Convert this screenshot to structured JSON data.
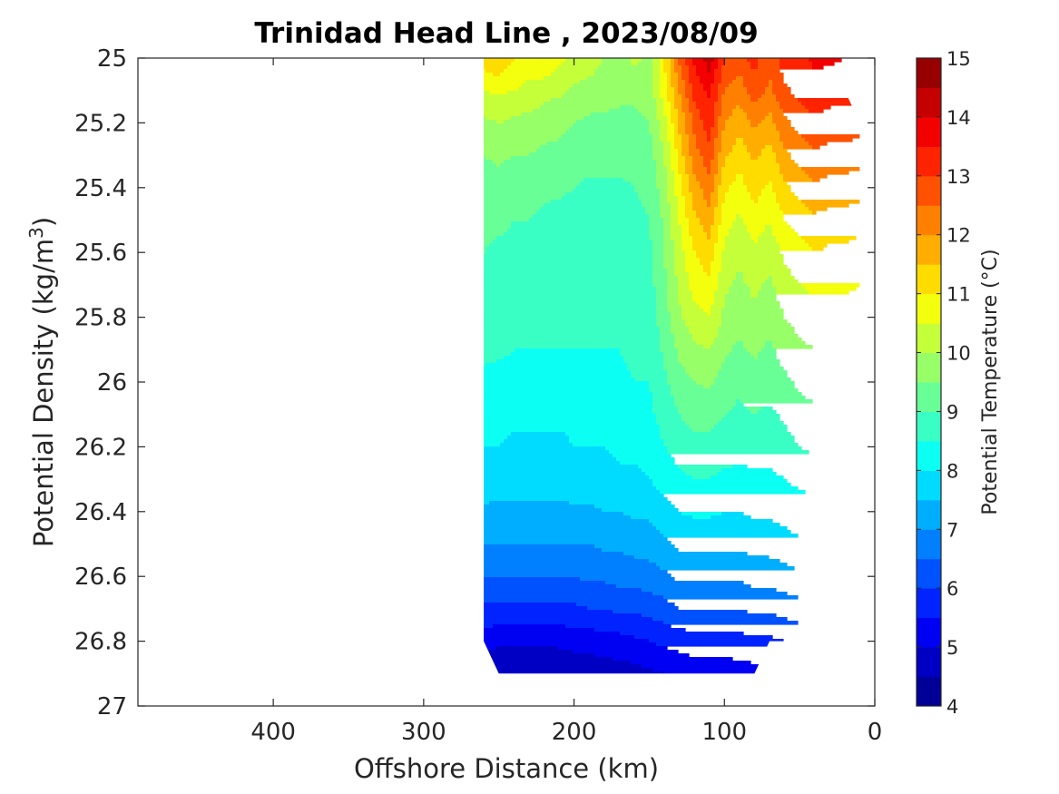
{
  "chart_data": {
    "type": "contour",
    "title": "Trinidad Head Line , 2023/08/09",
    "xlabel": "Offshore Distance (km)",
    "ylabel": "Potential Density (kg/m",
    "ylabel_sup": "3",
    "ylabel_suffix": ")",
    "xlim": [
      490,
      0
    ],
    "x_reversed": true,
    "ylim": [
      25,
      27
    ],
    "y_reversed": true,
    "x_ticks": [
      400,
      300,
      200,
      100,
      0
    ],
    "y_ticks": [
      25,
      25.2,
      25.4,
      25.6,
      25.8,
      26,
      26.2,
      26.4,
      26.6,
      26.8,
      27
    ],
    "x_tick_labels": [
      "400",
      "300",
      "200",
      "100",
      "0"
    ],
    "y_tick_labels": [
      "25",
      "25.2",
      "25.4",
      "25.6",
      "25.8",
      "26",
      "26.2",
      "26.4",
      "26.6",
      "26.8",
      "27"
    ],
    "colorbar": {
      "label": "Potential Temperature (°C)",
      "min": 4,
      "max": 15,
      "levels": [
        4,
        4.5,
        5,
        5.5,
        6,
        6.5,
        7,
        7.5,
        8,
        8.5,
        9,
        9.5,
        10,
        10.5,
        11,
        11.5,
        12,
        12.5,
        13,
        13.5,
        14,
        14.5,
        15
      ],
      "tick_values": [
        4,
        5,
        6,
        7,
        8,
        9,
        10,
        11,
        12,
        13,
        14,
        15
      ],
      "tick_labels": [
        "4",
        "5",
        "6",
        "7",
        "8",
        "9",
        "10",
        "11",
        "12",
        "13",
        "14",
        "15"
      ],
      "colormap": "jet"
    },
    "x": [
      260,
      250,
      240,
      230,
      220,
      210,
      200,
      190,
      180,
      170,
      160,
      150,
      140,
      130,
      120,
      110,
      100,
      90,
      80,
      70,
      60,
      50,
      40,
      30,
      20,
      10
    ],
    "y": [
      25.0,
      25.1,
      25.2,
      25.3,
      25.4,
      25.5,
      25.6,
      25.7,
      25.8,
      25.9,
      26.0,
      26.1,
      26.2,
      26.3,
      26.4,
      26.5,
      26.6,
      26.7,
      26.8,
      26.9
    ],
    "coverage": [
      {
        "x": 260,
        "y_top": 25.0,
        "y_bottom": 26.8
      },
      {
        "x": 250,
        "y_top": 25.0,
        "y_bottom": 26.9
      },
      {
        "x": 80,
        "y_top": 25.0,
        "y_bottom": 26.9
      },
      {
        "x": 70,
        "y_top": 25.0,
        "y_bottom": 26.8
      },
      {
        "x": 30,
        "y_top": 25.0,
        "y_bottom": 26.8
      },
      {
        "x": 30,
        "y_top": 25.0,
        "y_bottom": 26.6
      },
      {
        "x": 20,
        "y_top": 25.0,
        "y_bottom": 26.5
      },
      {
        "x": 20,
        "y_top": 25.0,
        "y_bottom": 26.2
      },
      {
        "x": 10,
        "y_top": 25.2,
        "y_bottom": 26.1
      },
      {
        "x": 20,
        "y_top": 25.1,
        "y_bottom": 26.0
      },
      {
        "x": 20,
        "y_top": 25.0,
        "y_bottom": 25.1
      }
    ],
    "values": [
      [
        11.3,
        11.5,
        11.0,
        10.7,
        11.0,
        10.6,
        10.4,
        10.3,
        10.0,
        9.6,
        10.2,
        9.8,
        11.0,
        12.6,
        13.6,
        14.3,
        13.0,
        12.8,
        13.2,
        12.6,
        13.3,
        13.4,
        13.6,
        13.6,
        13.5,
        13.3
      ],
      [
        10.5,
        10.6,
        10.5,
        10.4,
        10.2,
        10.1,
        9.9,
        9.8,
        9.7,
        9.6,
        9.6,
        9.7,
        10.8,
        12.0,
        13.2,
        13.6,
        12.5,
        12.2,
        12.8,
        12.4,
        12.9,
        13.2,
        13.3,
        13.2,
        13.2,
        13.1
      ],
      [
        9.9,
        10.0,
        9.9,
        9.8,
        9.7,
        9.6,
        9.5,
        9.4,
        9.4,
        9.4,
        9.4,
        9.5,
        10.3,
        11.6,
        12.6,
        13.3,
        12.0,
        11.7,
        12.1,
        11.8,
        12.4,
        12.7,
        12.9,
        12.8,
        12.8,
        12.7
      ],
      [
        9.5,
        9.6,
        9.5,
        9.5,
        9.4,
        9.4,
        9.3,
        9.2,
        9.2,
        9.2,
        9.2,
        9.3,
        10.0,
        11.2,
        12.3,
        12.8,
        11.6,
        11.2,
        11.6,
        11.3,
        11.9,
        12.2,
        12.4,
        12.3,
        12.3,
        12.2
      ],
      [
        9.3,
        9.3,
        9.2,
        9.2,
        9.1,
        9.1,
        9.0,
        8.9,
        8.9,
        8.9,
        9.0,
        9.1,
        9.8,
        10.8,
        11.8,
        12.3,
        11.1,
        10.8,
        11.2,
        10.9,
        11.4,
        11.7,
        11.9,
        11.8,
        11.8,
        11.7
      ],
      [
        9.1,
        9.1,
        9.0,
        9.0,
        8.9,
        8.8,
        8.8,
        8.8,
        8.8,
        8.8,
        8.9,
        9.0,
        9.6,
        10.5,
        11.4,
        11.8,
        10.7,
        10.4,
        10.8,
        10.5,
        11.0,
        11.2,
        11.4,
        11.3,
        11.3,
        11.2
      ],
      [
        9.0,
        8.9,
        8.9,
        8.8,
        8.8,
        8.8,
        8.8,
        8.7,
        8.7,
        8.7,
        8.8,
        8.9,
        9.5,
        10.3,
        11.0,
        11.3,
        10.4,
        10.1,
        10.4,
        10.2,
        10.6,
        10.8,
        11.0,
        10.9,
        10.9,
        10.8
      ],
      [
        8.9,
        8.9,
        8.8,
        8.8,
        8.7,
        8.7,
        8.7,
        8.7,
        8.7,
        8.7,
        8.7,
        8.8,
        9.4,
        10.1,
        10.7,
        10.9,
        10.1,
        9.9,
        10.1,
        9.9,
        10.3,
        10.5,
        10.6,
        10.6,
        10.6,
        10.5
      ],
      [
        8.8,
        8.8,
        8.7,
        8.7,
        8.7,
        8.7,
        8.6,
        8.6,
        8.6,
        8.6,
        8.7,
        8.7,
        9.3,
        9.9,
        10.3,
        10.5,
        9.9,
        9.7,
        9.9,
        9.7,
        10.0,
        10.2,
        10.3,
        10.3,
        10.3,
        10.2
      ],
      [
        8.6,
        8.6,
        8.5,
        8.5,
        8.5,
        8.5,
        8.5,
        8.5,
        8.5,
        8.5,
        8.6,
        8.6,
        9.1,
        9.6,
        9.9,
        10.0,
        9.6,
        9.4,
        9.6,
        9.4,
        9.7,
        9.9,
        10.0,
        10.0,
        10.0,
        10.0
      ],
      [
        8.4,
        8.3,
        8.3,
        8.3,
        8.3,
        8.3,
        8.3,
        8.3,
        8.4,
        8.4,
        8.5,
        8.5,
        8.9,
        9.3,
        9.5,
        9.6,
        9.3,
        9.1,
        9.3,
        9.2,
        9.4,
        9.6,
        9.7,
        9.7,
        9.7,
        9.7
      ],
      [
        8.2,
        8.2,
        8.1,
        8.1,
        8.1,
        8.1,
        8.1,
        8.2,
        8.2,
        8.3,
        8.3,
        8.4,
        8.7,
        9.0,
        9.2,
        9.2,
        9.0,
        8.9,
        9.0,
        8.9,
        9.1,
        9.3,
        9.4,
        9.4,
        9.4,
        9.4
      ],
      [
        8.0,
        8.0,
        7.9,
        7.9,
        7.9,
        7.9,
        8.0,
        8.0,
        8.0,
        8.1,
        8.1,
        8.2,
        8.5,
        8.7,
        8.8,
        8.8,
        8.7,
        8.6,
        8.7,
        8.7,
        8.8,
        9.0,
        9.1,
        9.1,
        9.1,
        9.1
      ],
      [
        7.8,
        7.7,
        7.7,
        7.7,
        7.7,
        7.7,
        7.8,
        7.8,
        7.8,
        7.9,
        7.9,
        8.0,
        8.2,
        8.4,
        8.5,
        8.5,
        8.4,
        8.4,
        8.4,
        8.4,
        8.5,
        8.6,
        8.7,
        8.7,
        8.7,
        8.7
      ],
      [
        7.4,
        7.4,
        7.4,
        7.4,
        7.4,
        7.4,
        7.4,
        7.4,
        7.5,
        7.5,
        7.6,
        7.6,
        7.8,
        8.0,
        8.1,
        8.1,
        8.0,
        8.0,
        8.1,
        8.1,
        8.2,
        8.3,
        8.3,
        8.3,
        8.3,
        8.3
      ],
      [
        7.0,
        7.0,
        7.0,
        7.0,
        7.0,
        7.0,
        7.0,
        7.0,
        7.1,
        7.1,
        7.2,
        7.2,
        7.4,
        7.6,
        7.6,
        7.6,
        7.6,
        7.6,
        7.7,
        7.7,
        7.8,
        7.9,
        7.9,
        7.9,
        7.9,
        7.9
      ],
      [
        6.5,
        6.5,
        6.5,
        6.5,
        6.5,
        6.5,
        6.5,
        6.6,
        6.6,
        6.7,
        6.7,
        6.8,
        6.9,
        7.1,
        7.1,
        7.1,
        7.1,
        7.1,
        7.2,
        7.2,
        7.3,
        7.4,
        7.4,
        7.4,
        7.4,
        7.4
      ],
      [
        5.9,
        5.9,
        5.9,
        5.9,
        5.9,
        5.9,
        5.9,
        6.0,
        6.0,
        6.1,
        6.1,
        6.2,
        6.3,
        6.5,
        6.5,
        6.5,
        6.5,
        6.5,
        6.6,
        6.6,
        6.7,
        6.8,
        6.8,
        6.8,
        6.8,
        6.8
      ],
      [
        5.2,
        5.1,
        5.1,
        5.1,
        5.1,
        5.1,
        5.2,
        5.2,
        5.3,
        5.3,
        5.4,
        5.5,
        5.6,
        5.7,
        5.8,
        5.8,
        5.8,
        5.8,
        5.9,
        5.9,
        6.0,
        6.1,
        6.1,
        6.1,
        6.1,
        6.1
      ],
      [
        4.6,
        4.6,
        4.5,
        4.5,
        4.5,
        4.6,
        4.6,
        4.7,
        4.7,
        4.8,
        4.8,
        4.9,
        5.0,
        5.1,
        5.2,
        5.2,
        5.2,
        5.3,
        5.3,
        5.3,
        5.4,
        5.5,
        5.5,
        5.5,
        5.5,
        5.5
      ]
    ]
  }
}
